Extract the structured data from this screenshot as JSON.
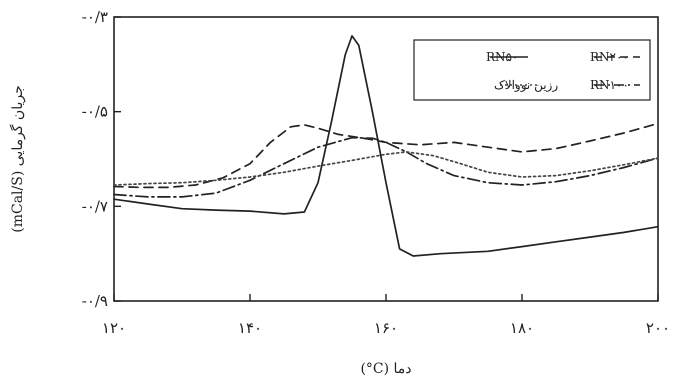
{
  "chart_data": {
    "type": "line",
    "xlabel": "دما (C°)",
    "ylabel": "جریان گرمایی (mCal/S)",
    "xlim": [
      120,
      200
    ],
    "ylim": [
      -0.9,
      -0.3
    ],
    "x_ticks": [
      {
        "value": 120,
        "label": "۱۲۰"
      },
      {
        "value": 140,
        "label": "۱۴۰"
      },
      {
        "value": 160,
        "label": "۱۶۰"
      },
      {
        "value": 180,
        "label": "۱۸۰"
      },
      {
        "value": 200,
        "label": "۲۰۰"
      }
    ],
    "y_ticks": [
      {
        "value": -0.3,
        "label": "-۰/۳"
      },
      {
        "value": -0.5,
        "label": "-۰/۵"
      },
      {
        "value": -0.7,
        "label": "-۰/۷"
      },
      {
        "value": -0.9,
        "label": "-۰/۹"
      }
    ],
    "legend_position": "top-right",
    "grid": false,
    "series": [
      {
        "name": "RN۵۰",
        "style": "solid",
        "color": "#222222",
        "points": [
          [
            120,
            -0.685
          ],
          [
            125,
            -0.695
          ],
          [
            130,
            -0.705
          ],
          [
            135,
            -0.708
          ],
          [
            140,
            -0.71
          ],
          [
            145,
            -0.716
          ],
          [
            148,
            -0.712
          ],
          [
            150,
            -0.65
          ],
          [
            152,
            -0.52
          ],
          [
            154,
            -0.38
          ],
          [
            155,
            -0.34
          ],
          [
            156,
            -0.36
          ],
          [
            158,
            -0.5
          ],
          [
            160,
            -0.65
          ],
          [
            162,
            -0.79
          ],
          [
            164,
            -0.805
          ],
          [
            168,
            -0.8
          ],
          [
            175,
            -0.795
          ],
          [
            180,
            -0.785
          ],
          [
            185,
            -0.775
          ],
          [
            190,
            -0.765
          ],
          [
            195,
            -0.755
          ],
          [
            200,
            -0.743
          ]
        ]
      },
      {
        "name": "RN۲۰۰",
        "style": "dashed",
        "color": "#222222",
        "points": [
          [
            120,
            -0.658
          ],
          [
            124,
            -0.66
          ],
          [
            128,
            -0.66
          ],
          [
            132,
            -0.655
          ],
          [
            136,
            -0.64
          ],
          [
            140,
            -0.61
          ],
          [
            143,
            -0.565
          ],
          [
            146,
            -0.532
          ],
          [
            148,
            -0.528
          ],
          [
            150,
            -0.535
          ],
          [
            153,
            -0.548
          ],
          [
            157,
            -0.557
          ],
          [
            160,
            -0.565
          ],
          [
            165,
            -0.57
          ],
          [
            170,
            -0.565
          ],
          [
            175,
            -0.575
          ],
          [
            180,
            -0.585
          ],
          [
            185,
            -0.578
          ],
          [
            190,
            -0.562
          ],
          [
            195,
            -0.545
          ],
          [
            200,
            -0.525
          ]
        ]
      },
      {
        "name": "RN۱۰۰",
        "style": "dash-dot",
        "color": "#222222",
        "points": [
          [
            120,
            -0.675
          ],
          [
            125,
            -0.68
          ],
          [
            130,
            -0.68
          ],
          [
            135,
            -0.672
          ],
          [
            140,
            -0.645
          ],
          [
            145,
            -0.61
          ],
          [
            150,
            -0.575
          ],
          [
            155,
            -0.555
          ],
          [
            158,
            -0.556
          ],
          [
            160,
            -0.565
          ],
          [
            163,
            -0.585
          ],
          [
            166,
            -0.61
          ],
          [
            170,
            -0.635
          ],
          [
            175,
            -0.65
          ],
          [
            180,
            -0.655
          ],
          [
            185,
            -0.648
          ],
          [
            190,
            -0.635
          ],
          [
            195,
            -0.618
          ],
          [
            200,
            -0.598
          ]
        ]
      },
      {
        "name": "رزین نووالاک",
        "style": "dotted",
        "color": "#444444",
        "points": [
          [
            120,
            -0.655
          ],
          [
            125,
            -0.652
          ],
          [
            130,
            -0.65
          ],
          [
            135,
            -0.645
          ],
          [
            140,
            -0.638
          ],
          [
            145,
            -0.628
          ],
          [
            150,
            -0.615
          ],
          [
            155,
            -0.603
          ],
          [
            160,
            -0.59
          ],
          [
            163,
            -0.585
          ],
          [
            167,
            -0.593
          ],
          [
            171,
            -0.61
          ],
          [
            175,
            -0.628
          ],
          [
            180,
            -0.638
          ],
          [
            185,
            -0.635
          ],
          [
            190,
            -0.625
          ],
          [
            195,
            -0.612
          ],
          [
            200,
            -0.598
          ]
        ]
      }
    ]
  }
}
